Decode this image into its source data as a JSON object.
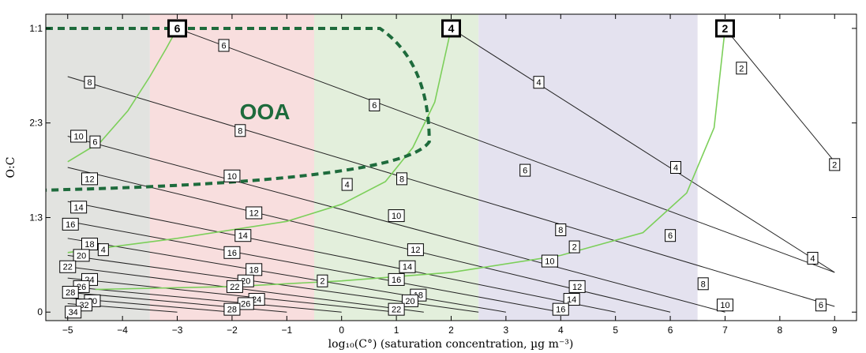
{
  "chart_data": {
    "type": "line",
    "title": "",
    "xlabel": "log₁₀(C°) (saturation concentration, µg m⁻³)",
    "ylabel": "O:C",
    "xlim": [
      -5.4,
      9.4
    ],
    "ylim": [
      -0.03,
      1.05
    ],
    "x_ticks": [
      -5,
      -4,
      -3,
      -2,
      -1,
      0,
      1,
      2,
      3,
      4,
      5,
      6,
      7,
      8,
      9
    ],
    "y_ticks": [
      {
        "value": 0,
        "label": "0"
      },
      {
        "value": 0.3333,
        "label": "1:3"
      },
      {
        "value": 0.6667,
        "label": "2:3"
      },
      {
        "value": 1.0,
        "label": "1:1"
      }
    ],
    "grid": false,
    "bands": [
      {
        "x0": -5.4,
        "x1": -3.5,
        "color": "#e2e3e0"
      },
      {
        "x0": -3.5,
        "x1": -0.5,
        "color": "#f8dede"
      },
      {
        "x0": -0.5,
        "x1": 2.5,
        "color": "#e3efdc"
      },
      {
        "x0": 2.5,
        "x1": 6.5,
        "color": "#e4e2ef"
      },
      {
        "x0": 6.5,
        "x1": 9.4,
        "color": "#ffffff"
      }
    ],
    "carbon_lines": [
      {
        "x0": -3.0,
        "y0": 1.0,
        "x1": 9.0,
        "y1": 0.14
      },
      {
        "x0": -5.0,
        "y0": 0.83,
        "x1": 9.0,
        "y1": 0.02
      },
      {
        "x0": -5.0,
        "y0": 0.62,
        "x1": 7.0,
        "y1": 0.0
      },
      {
        "x0": -5.0,
        "y0": 0.51,
        "x1": 6.0,
        "y1": 0.0
      },
      {
        "x0": -5.0,
        "y0": 0.39,
        "x1": 5.0,
        "y1": 0.0
      },
      {
        "x0": -5.0,
        "y0": 0.32,
        "x1": 4.0,
        "y1": 0.0
      },
      {
        "x0": -5.0,
        "y0": 0.26,
        "x1": 3.0,
        "y1": 0.0
      },
      {
        "x0": -5.0,
        "y0": 0.2,
        "x1": 2.5,
        "y1": 0.0
      },
      {
        "x0": -5.0,
        "y0": 0.16,
        "x1": 1.5,
        "y1": 0.0
      },
      {
        "x0": -5.0,
        "y0": 0.12,
        "x1": 1.0,
        "y1": 0.0
      },
      {
        "x0": -5.0,
        "y0": 0.09,
        "x1": 0.0,
        "y1": 0.0
      },
      {
        "x0": -5.0,
        "y0": 0.07,
        "x1": -1.0,
        "y1": 0.0
      },
      {
        "x0": -5.0,
        "y0": 0.05,
        "x1": -2.0,
        "y1": 0.0
      },
      {
        "x0": -5.0,
        "y0": 0.03,
        "x1": -3.0,
        "y1": 0.0
      },
      {
        "x0": 2.0,
        "y0": 1.0,
        "x1": 9.0,
        "y1": 0.14
      },
      {
        "x0": 7.0,
        "y0": 1.0,
        "x1": 9.0,
        "y1": 0.53
      }
    ],
    "green_curves": [
      {
        "points": [
          [
            -5.0,
            0.53
          ],
          [
            -4.4,
            0.6
          ],
          [
            -3.9,
            0.71
          ],
          [
            -3.5,
            0.83
          ],
          [
            -3.2,
            0.93
          ],
          [
            -3.0,
            1.0
          ]
        ]
      },
      {
        "points": [
          [
            -5.0,
            0.21
          ],
          [
            -3.0,
            0.26
          ],
          [
            -1.0,
            0.32
          ],
          [
            0.0,
            0.38
          ],
          [
            0.8,
            0.46
          ],
          [
            1.3,
            0.58
          ],
          [
            1.7,
            0.74
          ],
          [
            2.0,
            1.0
          ]
        ]
      },
      {
        "points": [
          [
            -4.5,
            0.08
          ],
          [
            -2.0,
            0.09
          ],
          [
            0.0,
            0.11
          ],
          [
            2.0,
            0.14
          ],
          [
            4.0,
            0.2
          ],
          [
            5.5,
            0.28
          ],
          [
            6.3,
            0.42
          ],
          [
            6.8,
            0.65
          ],
          [
            7.0,
            1.0
          ]
        ]
      }
    ],
    "ooa_region": {
      "label": "OOA",
      "label_x": -1.4,
      "label_y": 0.68,
      "points": [
        [
          -5.4,
          1.0
        ],
        [
          0.7,
          1.0
        ],
        [
          1.6,
          0.88
        ],
        [
          1.6,
          0.6
        ],
        [
          1.1,
          0.46
        ],
        [
          -5.4,
          0.43
        ]
      ]
    },
    "number_labels": [
      {
        "text": "6",
        "x": -3.0,
        "y": 1.0,
        "bold": true
      },
      {
        "text": "4",
        "x": 2.0,
        "y": 1.0,
        "bold": true
      },
      {
        "text": "2",
        "x": 7.0,
        "y": 1.0,
        "bold": true
      },
      {
        "text": "6",
        "x": -2.15,
        "y": 0.94
      },
      {
        "text": "2",
        "x": 7.3,
        "y": 0.86
      },
      {
        "text": "8",
        "x": -4.6,
        "y": 0.81
      },
      {
        "text": "4",
        "x": 3.6,
        "y": 0.81
      },
      {
        "text": "6",
        "x": 0.6,
        "y": 0.73
      },
      {
        "text": "8",
        "x": -1.85,
        "y": 0.64
      },
      {
        "text": "10",
        "x": -4.8,
        "y": 0.62
      },
      {
        "text": "6",
        "x": -4.5,
        "y": 0.6
      },
      {
        "text": "2",
        "x": 9.0,
        "y": 0.52
      },
      {
        "text": "6",
        "x": 3.35,
        "y": 0.5
      },
      {
        "text": "4",
        "x": 6.1,
        "y": 0.51
      },
      {
        "text": "12",
        "x": -4.6,
        "y": 0.47
      },
      {
        "text": "10",
        "x": -2.0,
        "y": 0.48
      },
      {
        "text": "8",
        "x": 1.1,
        "y": 0.47
      },
      {
        "text": "4",
        "x": 0.1,
        "y": 0.45
      },
      {
        "text": "14",
        "x": -4.8,
        "y": 0.37
      },
      {
        "text": "12",
        "x": -1.6,
        "y": 0.35
      },
      {
        "text": "10",
        "x": 1.0,
        "y": 0.34
      },
      {
        "text": "16",
        "x": -4.95,
        "y": 0.31
      },
      {
        "text": "8",
        "x": 4.0,
        "y": 0.29
      },
      {
        "text": "6",
        "x": 6.0,
        "y": 0.27
      },
      {
        "text": "14",
        "x": -1.8,
        "y": 0.27
      },
      {
        "text": "18",
        "x": -4.6,
        "y": 0.24
      },
      {
        "text": "4",
        "x": -4.35,
        "y": 0.22
      },
      {
        "text": "16",
        "x": -2.0,
        "y": 0.21
      },
      {
        "text": "12",
        "x": 1.35,
        "y": 0.22
      },
      {
        "text": "2",
        "x": 4.25,
        "y": 0.23
      },
      {
        "text": "20",
        "x": -4.75,
        "y": 0.2
      },
      {
        "text": "4",
        "x": 8.6,
        "y": 0.19
      },
      {
        "text": "10",
        "x": 3.8,
        "y": 0.18
      },
      {
        "text": "22",
        "x": -5.0,
        "y": 0.16
      },
      {
        "text": "14",
        "x": 1.2,
        "y": 0.16
      },
      {
        "text": "18",
        "x": -1.6,
        "y": 0.15
      },
      {
        "text": "20",
        "x": -1.75,
        "y": 0.11
      },
      {
        "text": "24",
        "x": -4.6,
        "y": 0.115
      },
      {
        "text": "16",
        "x": 1.0,
        "y": 0.115
      },
      {
        "text": "2",
        "x": -0.35,
        "y": 0.11
      },
      {
        "text": "8",
        "x": 6.6,
        "y": 0.1
      },
      {
        "text": "22",
        "x": -1.95,
        "y": 0.09
      },
      {
        "text": "26",
        "x": -4.75,
        "y": 0.09
      },
      {
        "text": "12",
        "x": 4.3,
        "y": 0.09
      },
      {
        "text": "28",
        "x": -4.95,
        "y": 0.07
      },
      {
        "text": "18",
        "x": 1.4,
        "y": 0.06
      },
      {
        "text": "24",
        "x": -1.55,
        "y": 0.045
      },
      {
        "text": "26",
        "x": -1.75,
        "y": 0.03
      },
      {
        "text": "30",
        "x": -4.55,
        "y": 0.04
      },
      {
        "text": "20",
        "x": 1.25,
        "y": 0.04
      },
      {
        "text": "14",
        "x": 4.2,
        "y": 0.045
      },
      {
        "text": "32",
        "x": -4.7,
        "y": 0.025
      },
      {
        "text": "10",
        "x": 7.0,
        "y": 0.025
      },
      {
        "text": "6",
        "x": 8.75,
        "y": 0.025
      },
      {
        "text": "34",
        "x": -4.9,
        "y": 0.0
      },
      {
        "text": "28",
        "x": -2.0,
        "y": 0.01
      },
      {
        "text": "22",
        "x": 1.0,
        "y": 0.01
      },
      {
        "text": "16",
        "x": 4.0,
        "y": 0.01
      }
    ]
  }
}
